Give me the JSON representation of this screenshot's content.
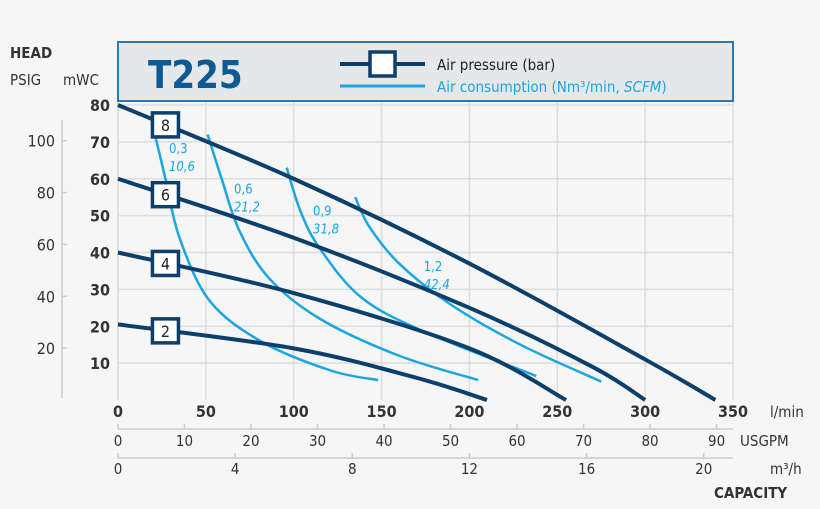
{
  "colors": {
    "pressure": "#0d3f6b",
    "consumption": "#1aa6e0",
    "title": "#0d5a94",
    "legend_bg": "#e6e7e8",
    "legend_border": "#2a7ab0",
    "grid": "#dddddd",
    "text": "#333333"
  },
  "chart_data": {
    "type": "line",
    "title": "T225",
    "legend": {
      "pressure": "Air pressure (bar)",
      "consumption_prefix": "Air consumption (Nm³/min, ",
      "consumption_italic": "SCFM",
      "consumption_suffix": ")"
    },
    "ylabel_top": "HEAD",
    "ylabel_psig": "PSIG",
    "ylabel_mwc": "mWC",
    "xlabel": "CAPACITY",
    "x_units": {
      "lmin": "l/min",
      "usgpm": "USGPM",
      "m3h": "m³/h"
    },
    "xlim": [
      0,
      350
    ],
    "ylim": [
      0,
      80
    ],
    "x_ticks_lmin": [
      0,
      50,
      100,
      150,
      200,
      250,
      300,
      350
    ],
    "x_ticks_usgpm": [
      0,
      10,
      20,
      30,
      40,
      50,
      60,
      70,
      80,
      90
    ],
    "x_ticks_m3h": [
      0,
      4,
      8,
      12,
      16,
      20
    ],
    "y_ticks_mwc": [
      10,
      20,
      30,
      40,
      50,
      60,
      70,
      80
    ],
    "y_ticks_psig": [
      20,
      40,
      60,
      80,
      100
    ],
    "grid": true,
    "pressure_series": [
      {
        "name": "8",
        "label_x": 27,
        "points": [
          [
            0,
            80
          ],
          [
            100,
            60
          ],
          [
            200,
            37
          ],
          [
            300,
            11
          ],
          [
            340,
            0
          ]
        ]
      },
      {
        "name": "6",
        "label_x": 27,
        "points": [
          [
            0,
            60
          ],
          [
            100,
            44
          ],
          [
            200,
            25
          ],
          [
            270,
            9
          ],
          [
            300,
            0
          ]
        ]
      },
      {
        "name": "4",
        "label_x": 27,
        "points": [
          [
            0,
            40
          ],
          [
            100,
            29
          ],
          [
            200,
            14
          ],
          [
            255,
            0
          ]
        ]
      },
      {
        "name": "2",
        "label_x": 27,
        "points": [
          [
            0,
            20.5
          ],
          [
            100,
            14
          ],
          [
            170,
            6
          ],
          [
            210,
            0
          ]
        ]
      }
    ],
    "consumption_series": [
      {
        "name": "0,3",
        "scfm": "10,6",
        "label": [
          29,
          67
        ],
        "points": [
          [
            21,
            72
          ],
          [
            27,
            60
          ],
          [
            35,
            44
          ],
          [
            52,
            27
          ],
          [
            81,
            16
          ],
          [
            121,
            8
          ],
          [
            148,
            5.4
          ]
        ]
      },
      {
        "name": "0,6",
        "scfm": "21,2",
        "label": [
          66,
          56
        ],
        "points": [
          [
            51,
            72
          ],
          [
            59,
            60
          ],
          [
            69,
            46
          ],
          [
            86,
            33
          ],
          [
            115,
            22
          ],
          [
            160,
            12
          ],
          [
            205,
            5.4
          ]
        ]
      },
      {
        "name": "0,9",
        "scfm": "31,8",
        "label": [
          111,
          50
        ],
        "points": [
          [
            96,
            63
          ],
          [
            104,
            51
          ],
          [
            115,
            41
          ],
          [
            138,
            28
          ],
          [
            172,
            19
          ],
          [
            238,
            6.5
          ]
        ]
      },
      {
        "name": "1,2",
        "scfm": "42,4",
        "label": [
          174,
          35
        ],
        "points": [
          [
            135,
            55
          ],
          [
            143,
            47
          ],
          [
            160,
            37
          ],
          [
            189,
            26
          ],
          [
            229,
            15
          ],
          [
            275,
            5
          ]
        ]
      }
    ]
  }
}
